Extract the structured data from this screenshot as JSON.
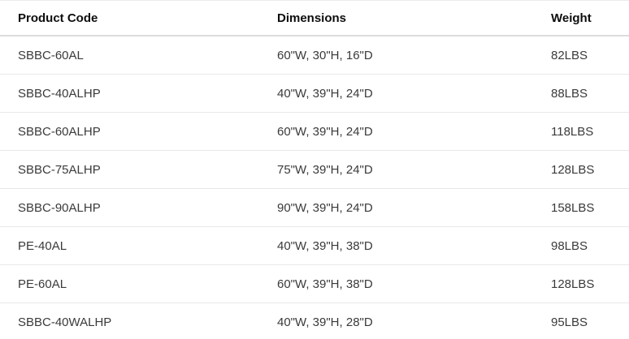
{
  "table": {
    "columns": [
      {
        "key": "product_code",
        "label": "Product Code"
      },
      {
        "key": "dimensions",
        "label": "Dimensions"
      },
      {
        "key": "weight",
        "label": "Weight"
      }
    ],
    "rows": [
      {
        "product_code": "SBBC-60AL",
        "dimensions": "60\"W, 30\"H, 16\"D",
        "weight": "82LBS"
      },
      {
        "product_code": "SBBC-40ALHP",
        "dimensions": "40\"W, 39\"H, 24\"D",
        "weight": "88LBS"
      },
      {
        "product_code": "SBBC-60ALHP",
        "dimensions": "60\"W, 39\"H, 24\"D",
        "weight": "118LBS"
      },
      {
        "product_code": "SBBC-75ALHP",
        "dimensions": "75\"W, 39\"H, 24\"D",
        "weight": "128LBS"
      },
      {
        "product_code": "SBBC-90ALHP",
        "dimensions": "90\"W, 39\"H, 24\"D",
        "weight": "158LBS"
      },
      {
        "product_code": "PE-40AL",
        "dimensions": "40\"W, 39\"H, 38\"D",
        "weight": "98LBS"
      },
      {
        "product_code": "PE-60AL",
        "dimensions": "60\"W, 39\"H, 38\"D",
        "weight": "128LBS"
      },
      {
        "product_code": "SBBC-40WALHP",
        "dimensions": "40\"W, 39\"H, 28\"D",
        "weight": "95LBS"
      }
    ]
  },
  "colors": {
    "background": "#ffffff",
    "header_text": "#0d0d0d",
    "cell_text": "#3a3a3a",
    "header_separator": "#dcdcdc",
    "row_separator": "#e8e8e8"
  }
}
